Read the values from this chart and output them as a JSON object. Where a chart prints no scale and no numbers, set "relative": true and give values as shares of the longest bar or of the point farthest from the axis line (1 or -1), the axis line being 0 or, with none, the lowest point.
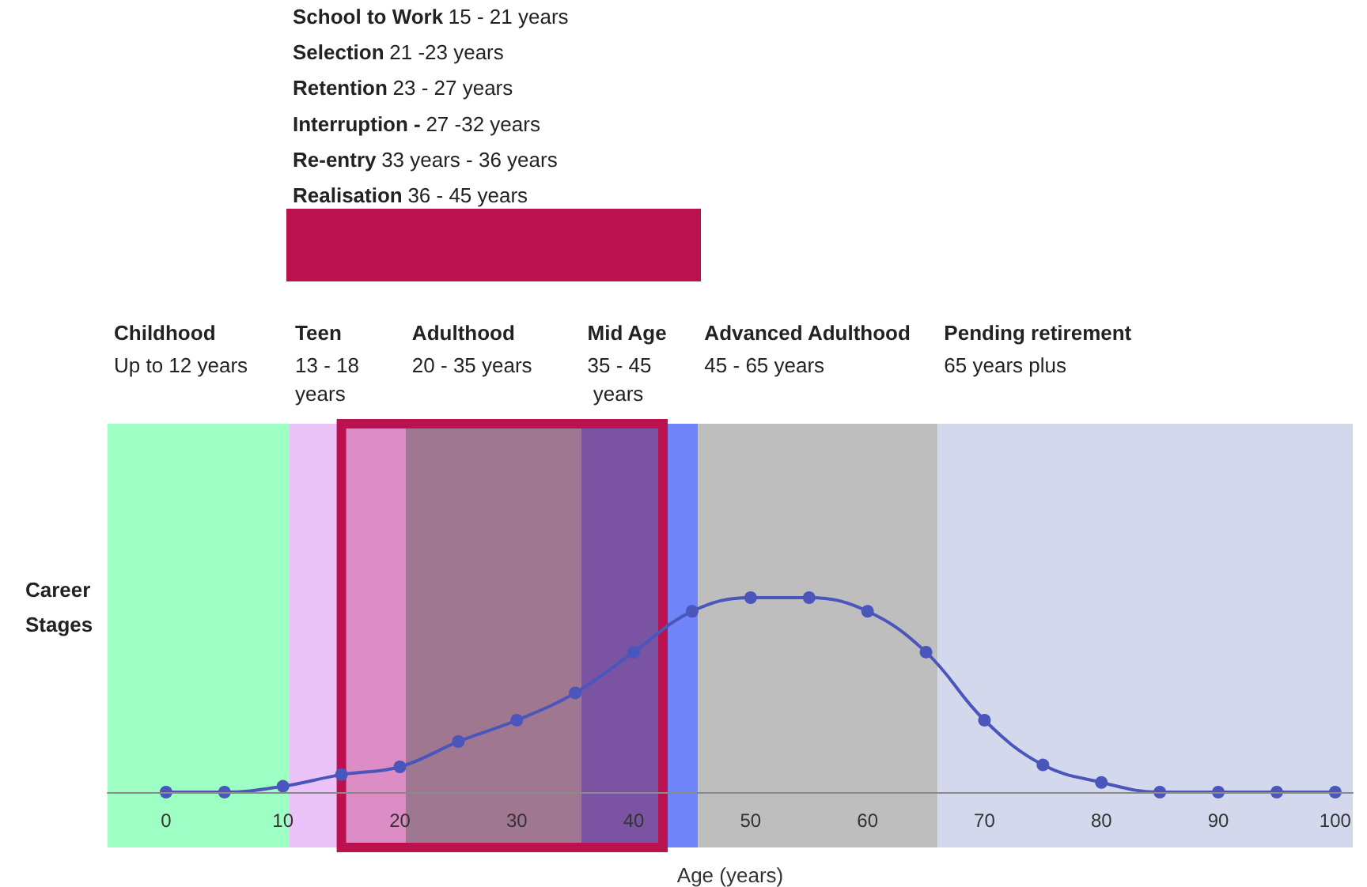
{
  "chart_data": {
    "type": "line",
    "xlabel": "Age (years)",
    "ylabel": "Career Stages",
    "relative": true,
    "marker": "circle",
    "line_style": "solid",
    "tick_labels": "x",
    "x": [
      0,
      5,
      10,
      15,
      20,
      25,
      30,
      35,
      40,
      45,
      50,
      55,
      60,
      65,
      70,
      75,
      80,
      85,
      90,
      95,
      100
    ],
    "xlim": [
      -5,
      101.5
    ],
    "xticks": [
      0,
      10,
      20,
      30,
      40,
      50,
      60,
      70,
      80,
      90,
      100
    ],
    "series": [
      {
        "color": "#4a56bb",
        "values": [
          0,
          0,
          0.03,
          0.09,
          0.13,
          0.26,
          0.37,
          0.51,
          0.72,
          0.93,
          1,
          1,
          0.93,
          0.72,
          0.37,
          0.14,
          0.05,
          0,
          0,
          0,
          0
        ]
      }
    ],
    "bands": [
      {
        "axis": "x",
        "from": -5,
        "to": 10.5,
        "label": "Childhood\nUp to 12 years",
        "color": "#9effc4"
      },
      {
        "axis": "x",
        "from": 10.5,
        "to": 20.5,
        "label": "Teen\n13 - 18 years",
        "color": "#ebc3f8"
      },
      {
        "axis": "x",
        "from": 20.5,
        "to": 35.5,
        "label": "Adulthood\n20 - 35 years",
        "color": "#95a4ac"
      },
      {
        "axis": "x",
        "from": 35.5,
        "to": 42.5,
        "label": "Mid Age\n35 - 45 years",
        "color": "#5f72c7"
      },
      {
        "axis": "x",
        "from": 42.5,
        "to": 45.5,
        "color": "#6e84f8"
      },
      {
        "axis": "x",
        "from": 45.5,
        "to": 66,
        "label": "Advanced Adulthood\n45 - 65 years",
        "color": "#bebebe"
      },
      {
        "axis": "x",
        "from": 66,
        "to": 101.5,
        "label": "Pending retirement\n65 years plus",
        "color": "#d3d8ec"
      },
      {
        "axis": "x",
        "from": 15,
        "to": 42.5,
        "color": "#b9124f"
      }
    ],
    "annotations": [
      "School to Work",
      "15 - 21 years",
      "Selection",
      "21 -23 years",
      "Retention",
      "23 - 27 years",
      "Interruption -",
      "27 -32 years",
      "Re-entry",
      "33 years - 36 years",
      "Realisation",
      "36 - 45 years"
    ]
  }
}
